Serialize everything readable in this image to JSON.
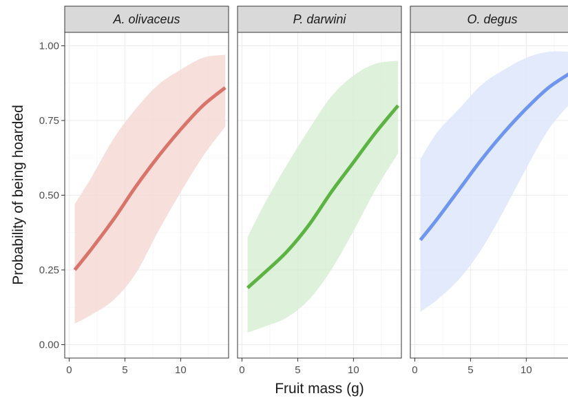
{
  "chart_data": {
    "type": "line",
    "xlabel": "Fruit mass (g)",
    "ylabel": "Probability of being hoarded",
    "xlim": [
      -0.4,
      14.3
    ],
    "ylim": [
      -0.045,
      1.045
    ],
    "x_ticks": [
      0,
      5,
      10
    ],
    "x_tick_labels": [
      "0",
      "5",
      "10"
    ],
    "y_ticks": [
      0,
      0.25,
      0.5,
      0.75,
      1.0
    ],
    "y_tick_labels": [
      "0.00",
      "0.25",
      "0.50",
      "0.75",
      "1.00"
    ],
    "grid": true,
    "legend": "none",
    "panels": [
      {
        "title": "A. olivaceus",
        "color": "#d9746b",
        "band_color": "#f6d9d6",
        "x": [
          0.5,
          2,
          4,
          6,
          8,
          10,
          12,
          14
        ],
        "y": [
          0.25,
          0.32,
          0.42,
          0.53,
          0.63,
          0.72,
          0.8,
          0.86
        ],
        "lower": [
          0.07,
          0.1,
          0.15,
          0.24,
          0.38,
          0.51,
          0.63,
          0.73
        ],
        "upper": [
          0.47,
          0.56,
          0.69,
          0.79,
          0.87,
          0.92,
          0.96,
          0.97
        ]
      },
      {
        "title": "P. darwini",
        "color": "#5cb344",
        "band_color": "#d8efd4",
        "x": [
          0.5,
          2,
          4,
          6,
          8,
          10,
          12,
          14
        ],
        "y": [
          0.19,
          0.24,
          0.31,
          0.4,
          0.51,
          0.61,
          0.71,
          0.8
        ],
        "lower": [
          0.04,
          0.06,
          0.09,
          0.15,
          0.25,
          0.38,
          0.52,
          0.64
        ],
        "upper": [
          0.36,
          0.47,
          0.6,
          0.72,
          0.83,
          0.9,
          0.94,
          0.95
        ]
      },
      {
        "title": "O. degus",
        "color": "#6e96ee",
        "band_color": "#dde6fc",
        "x": [
          0.5,
          2,
          4,
          6,
          8,
          10,
          12,
          14
        ],
        "y": [
          0.35,
          0.42,
          0.52,
          0.62,
          0.71,
          0.79,
          0.86,
          0.91
        ],
        "lower": [
          0.11,
          0.15,
          0.22,
          0.32,
          0.45,
          0.59,
          0.72,
          0.81
        ],
        "upper": [
          0.62,
          0.71,
          0.79,
          0.87,
          0.92,
          0.96,
          0.98,
          0.98
        ]
      }
    ]
  }
}
